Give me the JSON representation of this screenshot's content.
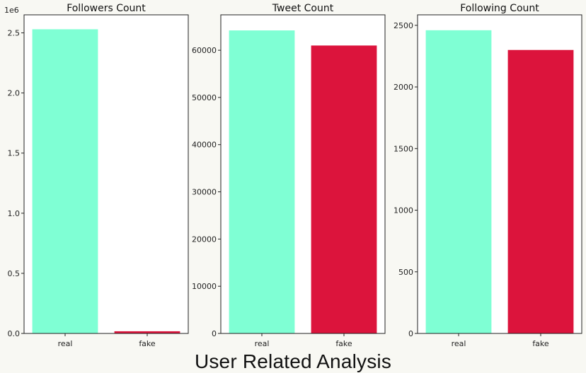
{
  "colors": {
    "real": "#7fffd4",
    "fake": "#dc143c",
    "axis": "#222222",
    "text": "#222222"
  },
  "caption": "User Related Analysis",
  "chart_data": [
    {
      "type": "bar",
      "title": "Followers Count",
      "categories": [
        "real",
        "fake"
      ],
      "values": [
        2530000,
        18000
      ],
      "ylim": [
        0,
        2650000
      ],
      "yticks": [
        0,
        500000,
        1000000,
        1500000,
        2000000,
        2500000
      ],
      "ytick_labels": [
        "0.0",
        "0.5",
        "1.0",
        "1.5",
        "2.0",
        "2.5"
      ],
      "offset_label": "1e6",
      "xlabel": "",
      "ylabel": "",
      "grid": false
    },
    {
      "type": "bar",
      "title": "Tweet Count",
      "categories": [
        "real",
        "fake"
      ],
      "values": [
        64200,
        61000
      ],
      "ylim": [
        0,
        67500
      ],
      "yticks": [
        0,
        10000,
        20000,
        30000,
        40000,
        50000,
        60000
      ],
      "ytick_labels": [
        "0",
        "10000",
        "20000",
        "30000",
        "40000",
        "50000",
        "60000"
      ],
      "offset_label": "",
      "xlabel": "",
      "ylabel": "",
      "grid": false
    },
    {
      "type": "bar",
      "title": "Following Count",
      "categories": [
        "real",
        "fake"
      ],
      "values": [
        2460,
        2300
      ],
      "ylim": [
        0,
        2585
      ],
      "yticks": [
        0,
        500,
        1000,
        1500,
        2000,
        2500
      ],
      "ytick_labels": [
        "0",
        "500",
        "1000",
        "1500",
        "2000",
        "2500"
      ],
      "offset_label": "",
      "xlabel": "",
      "ylabel": "",
      "grid": false
    }
  ]
}
